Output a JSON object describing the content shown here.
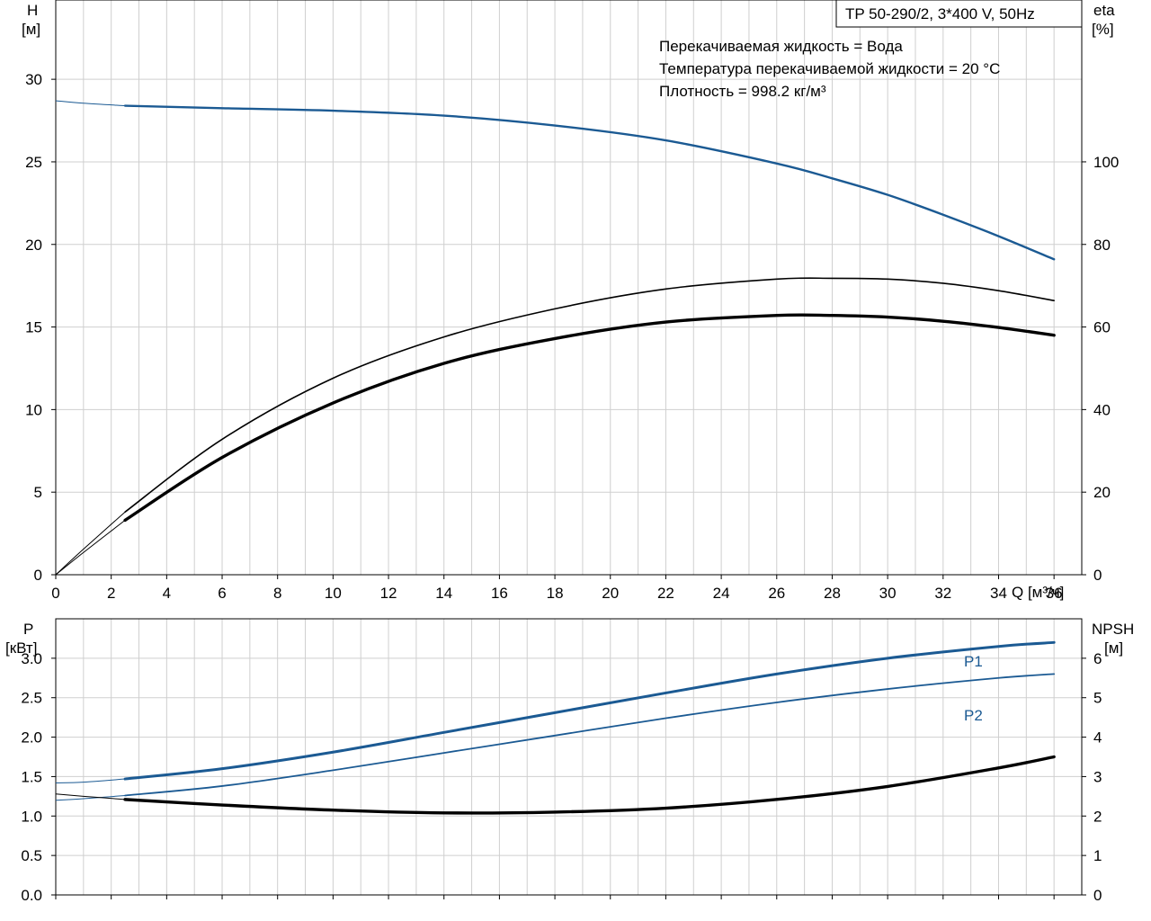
{
  "header": {
    "model": "TP 50-290/2, 3*400 V, 50Hz",
    "info_lines": [
      "Перекачиваемая жидкость = Вода",
      "Температура перекачиваемой жидкости = 20 °C",
      "Плотность = 998.2 кг/м³"
    ]
  },
  "colors": {
    "blue": "#1b5a93",
    "black": "#000000",
    "grid": "#cfcfcf"
  },
  "chart_data": [
    {
      "type": "line",
      "xlabel": "Q [м³/ч]",
      "ylabel_left": [
        "H",
        "[м]"
      ],
      "ylabel_right": [
        "eta",
        "[%]"
      ],
      "xlim": [
        0,
        37
      ],
      "ylim_left": [
        0,
        34.8
      ],
      "ylim_right": [
        0,
        139.2
      ],
      "x_ticks": [
        0,
        2,
        4,
        6,
        8,
        10,
        12,
        14,
        16,
        18,
        20,
        22,
        24,
        26,
        28,
        30,
        32,
        34,
        36
      ],
      "y_ticks_left": [
        0,
        5,
        10,
        15,
        20,
        25,
        30
      ],
      "y_ticks_right": [
        0,
        20,
        40,
        60,
        80,
        100
      ],
      "grid": true,
      "series": [
        {
          "axis": "left",
          "color": "blue",
          "width": 2.4,
          "extension": {
            "x": [
              0,
              1,
              2.5
            ],
            "y": [
              28.7,
              28.55,
              28.4
            ]
          },
          "x": [
            2.5,
            6,
            10,
            14,
            18,
            22,
            26,
            28,
            30,
            32,
            34,
            36
          ],
          "y": [
            28.4,
            28.25,
            28.1,
            27.8,
            27.2,
            26.3,
            24.9,
            24.0,
            23.0,
            21.8,
            20.5,
            19.1
          ]
        },
        {
          "axis": "right",
          "color": "black",
          "width": 1.6,
          "extension": {
            "x": [
              0,
              1,
              2.5
            ],
            "y": [
              0,
              6.2,
              15.2
            ]
          },
          "x": [
            2.5,
            6,
            10,
            14,
            18,
            22,
            26,
            28,
            30,
            32,
            34,
            36
          ],
          "y": [
            15.2,
            32.8,
            47.6,
            57.6,
            64.4,
            69.2,
            71.6,
            71.8,
            71.6,
            70.6,
            68.8,
            66.4
          ]
        },
        {
          "axis": "right",
          "color": "black",
          "width": 3.4,
          "extension": {
            "x": [
              0,
              1,
              2.5
            ],
            "y": [
              0,
              5.4,
              13.2
            ]
          },
          "x": [
            2.5,
            6,
            10,
            14,
            18,
            22,
            26,
            28,
            30,
            32,
            34,
            36
          ],
          "y": [
            13.2,
            28.4,
            41.6,
            51.2,
            57.2,
            61.2,
            62.8,
            62.8,
            62.4,
            61.4,
            59.9,
            58.0
          ]
        }
      ]
    },
    {
      "type": "line",
      "ylabel_left": [
        "P",
        "[кВт]"
      ],
      "ylabel_right": [
        "NPSH",
        "[м]"
      ],
      "xlim": [
        0,
        37
      ],
      "ylim_left": [
        0,
        3.5
      ],
      "ylim_right": [
        0,
        7
      ],
      "y_ticks_left": [
        "0.0",
        "0.5",
        "1.0",
        "1.5",
        "2.0",
        "2.5",
        "3.0"
      ],
      "y_ticks_right": [
        0,
        1,
        2,
        3,
        4,
        5,
        6
      ],
      "grid": true,
      "series": [
        {
          "name": "P1",
          "axis": "left",
          "color": "blue",
          "width": 3.0,
          "extension": {
            "x": [
              0,
              1,
              2.5
            ],
            "y": [
              1.42,
              1.43,
              1.47
            ]
          },
          "x": [
            2.5,
            6,
            10,
            14,
            18,
            22,
            26,
            30,
            34,
            36
          ],
          "y": [
            1.47,
            1.6,
            1.81,
            2.06,
            2.31,
            2.56,
            2.8,
            3.0,
            3.15,
            3.2
          ]
        },
        {
          "name": "P2",
          "axis": "left",
          "color": "blue",
          "width": 1.8,
          "extension": {
            "x": [
              0,
              1,
              2.5
            ],
            "y": [
              1.2,
              1.22,
              1.26
            ]
          },
          "x": [
            2.5,
            6,
            10,
            14,
            18,
            22,
            26,
            30,
            34,
            36
          ],
          "y": [
            1.26,
            1.38,
            1.58,
            1.8,
            2.02,
            2.24,
            2.44,
            2.61,
            2.75,
            2.8
          ]
        },
        {
          "axis": "right",
          "color": "black",
          "width": 3.4,
          "extension": {
            "x": [
              0,
              1,
              2.5
            ],
            "y": [
              2.56,
              2.5,
              2.42
            ]
          },
          "x": [
            2.5,
            6,
            10,
            14,
            18,
            22,
            26,
            30,
            34,
            36
          ],
          "y": [
            2.42,
            2.28,
            2.15,
            2.08,
            2.1,
            2.2,
            2.42,
            2.75,
            3.22,
            3.5
          ]
        }
      ]
    }
  ]
}
